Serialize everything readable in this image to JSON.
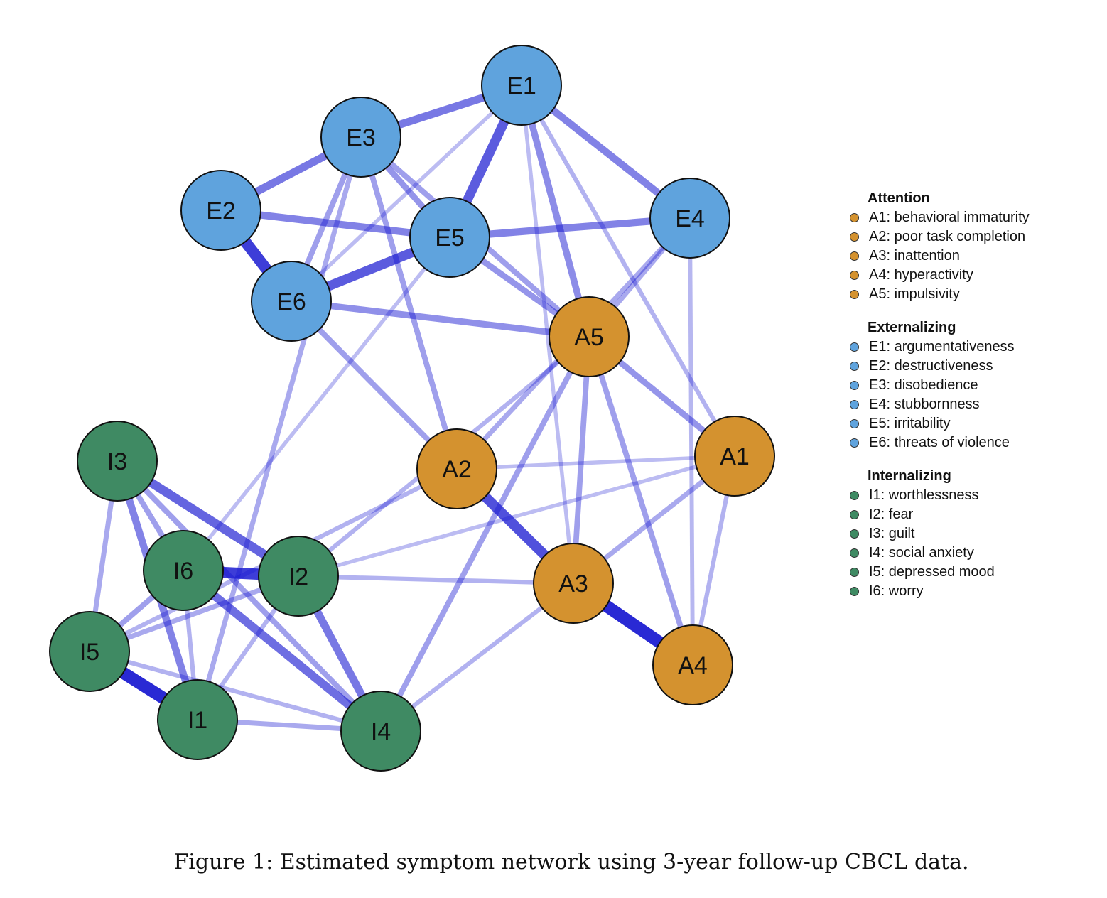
{
  "colors": {
    "attention": "#d4922f",
    "externalizing": "#5fa3dd",
    "internalizing": "#3f8a63",
    "edge": "#1616d0"
  },
  "nodes": [
    {
      "id": "E1",
      "label": "E1",
      "group": "externalizing"
    },
    {
      "id": "E2",
      "label": "E2",
      "group": "externalizing"
    },
    {
      "id": "E3",
      "label": "E3",
      "group": "externalizing"
    },
    {
      "id": "E4",
      "label": "E4",
      "group": "externalizing"
    },
    {
      "id": "E5",
      "label": "E5",
      "group": "externalizing"
    },
    {
      "id": "E6",
      "label": "E6",
      "group": "externalizing"
    },
    {
      "id": "A1",
      "label": "A1",
      "group": "attention"
    },
    {
      "id": "A2",
      "label": "A2",
      "group": "attention"
    },
    {
      "id": "A3",
      "label": "A3",
      "group": "attention"
    },
    {
      "id": "A4",
      "label": "A4",
      "group": "attention"
    },
    {
      "id": "A5",
      "label": "A5",
      "group": "attention"
    },
    {
      "id": "I1",
      "label": "I1",
      "group": "internalizing"
    },
    {
      "id": "I2",
      "label": "I2",
      "group": "internalizing"
    },
    {
      "id": "I3",
      "label": "I3",
      "group": "internalizing"
    },
    {
      "id": "I4",
      "label": "I4",
      "group": "internalizing"
    },
    {
      "id": "I5",
      "label": "I5",
      "group": "internalizing"
    },
    {
      "id": "I6",
      "label": "I6",
      "group": "internalizing"
    }
  ],
  "edges": [
    {
      "source": "E2",
      "target": "E6",
      "weight": 0.8
    },
    {
      "source": "E1",
      "target": "E5",
      "weight": 0.65
    },
    {
      "source": "E5",
      "target": "E6",
      "weight": 0.65
    },
    {
      "source": "E1",
      "target": "E3",
      "weight": 0.5
    },
    {
      "source": "E2",
      "target": "E3",
      "weight": 0.5
    },
    {
      "source": "E2",
      "target": "E5",
      "weight": 0.45
    },
    {
      "source": "E5",
      "target": "E4",
      "weight": 0.45
    },
    {
      "source": "E1",
      "target": "E4",
      "weight": 0.45
    },
    {
      "source": "E3",
      "target": "E5",
      "weight": 0.35
    },
    {
      "source": "E6",
      "target": "A5",
      "weight": 0.38
    },
    {
      "source": "E1",
      "target": "A5",
      "weight": 0.4
    },
    {
      "source": "E5",
      "target": "A5",
      "weight": 0.35
    },
    {
      "source": "E3",
      "target": "A5",
      "weight": 0.3
    },
    {
      "source": "E1",
      "target": "A1",
      "weight": 0.2
    },
    {
      "source": "E1",
      "target": "A3",
      "weight": 0.15
    },
    {
      "source": "E1",
      "target": "E6",
      "weight": 0.15
    },
    {
      "source": "E3",
      "target": "A2",
      "weight": 0.3
    },
    {
      "source": "E3",
      "target": "E6",
      "weight": 0.3
    },
    {
      "source": "E3",
      "target": "I1",
      "weight": 0.25
    },
    {
      "source": "E5",
      "target": "I6",
      "weight": 0.15
    },
    {
      "source": "E6",
      "target": "A2",
      "weight": 0.3
    },
    {
      "source": "E4",
      "target": "A2",
      "weight": 0.25
    },
    {
      "source": "E4",
      "target": "A5",
      "weight": 0.25
    },
    {
      "source": "E4",
      "target": "A4",
      "weight": 0.18
    },
    {
      "source": "A5",
      "target": "A1",
      "weight": 0.35
    },
    {
      "source": "A5",
      "target": "A3",
      "weight": 0.3
    },
    {
      "source": "A5",
      "target": "A4",
      "weight": 0.3
    },
    {
      "source": "A5",
      "target": "I4",
      "weight": 0.3
    },
    {
      "source": "A5",
      "target": "I2",
      "weight": 0.2
    },
    {
      "source": "A2",
      "target": "A3",
      "weight": 0.7
    },
    {
      "source": "A3",
      "target": "A4",
      "weight": 0.9
    },
    {
      "source": "A1",
      "target": "A3",
      "weight": 0.25
    },
    {
      "source": "A1",
      "target": "A4",
      "weight": 0.2
    },
    {
      "source": "A1",
      "target": "I2",
      "weight": 0.15
    },
    {
      "source": "A1",
      "target": "A2",
      "weight": 0.15
    },
    {
      "source": "A2",
      "target": "I5",
      "weight": 0.2
    },
    {
      "source": "A3",
      "target": "I2",
      "weight": 0.2
    },
    {
      "source": "A3",
      "target": "I4",
      "weight": 0.2
    },
    {
      "source": "I3",
      "target": "I2",
      "weight": 0.6
    },
    {
      "source": "I6",
      "target": "I2",
      "weight": 0.8
    },
    {
      "source": "I3",
      "target": "I1",
      "weight": 0.45
    },
    {
      "source": "I5",
      "target": "I1",
      "weight": 0.9
    },
    {
      "source": "I6",
      "target": "I4",
      "weight": 0.55
    },
    {
      "source": "I2",
      "target": "I4",
      "weight": 0.5
    },
    {
      "source": "I3",
      "target": "I4",
      "weight": 0.3
    },
    {
      "source": "I3",
      "target": "I5",
      "weight": 0.25
    },
    {
      "source": "I6",
      "target": "I5",
      "weight": 0.3
    },
    {
      "source": "I2",
      "target": "I5",
      "weight": 0.25
    },
    {
      "source": "I2",
      "target": "I1",
      "weight": 0.2
    },
    {
      "source": "I6",
      "target": "I1",
      "weight": 0.2
    },
    {
      "source": "I1",
      "target": "I4",
      "weight": 0.25
    },
    {
      "source": "I5",
      "target": "I4",
      "weight": 0.2
    },
    {
      "source": "I3",
      "target": "I6",
      "weight": 0.3
    }
  ],
  "legend": [
    {
      "title": "Attention",
      "group": "attention",
      "items": [
        "A1: behavioral immaturity",
        "A2: poor task completion",
        "A3: inattention",
        "A4: hyperactivity",
        "A5: impulsivity"
      ]
    },
    {
      "title": "Externalizing",
      "group": "externalizing",
      "items": [
        "E1: argumentativeness",
        "E2: destructiveness",
        "E3: disobedience",
        "E4: stubbornness",
        "E5: irritability",
        "E6: threats of violence"
      ]
    },
    {
      "title": "Internalizing",
      "group": "internalizing",
      "items": [
        "I1: worthlessness",
        "I2: fear",
        "I3: guilt",
        "I4: social anxiety",
        "I5: depressed mood",
        "I6: worry"
      ]
    }
  ],
  "caption": "Figure 1: Estimated symptom network using 3-year follow-up CBCL data."
}
